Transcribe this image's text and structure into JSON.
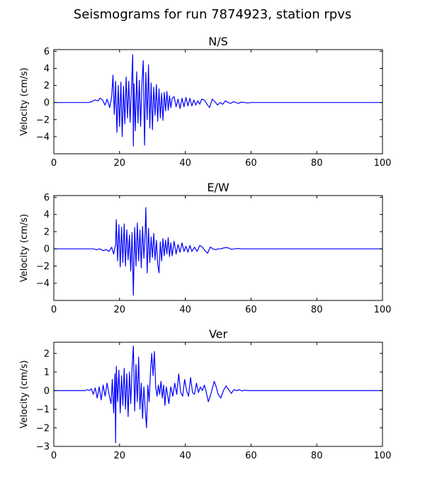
{
  "figure": {
    "title": "Seismograms for run 7874923, station rpvs"
  },
  "colors": {
    "trace": "#0000ff",
    "axes": "#000000",
    "background": "#ffffff"
  },
  "chart_data": [
    {
      "type": "line",
      "title": "N/S",
      "xlabel": "",
      "ylabel": "Velocity (cm/s)",
      "xlim": [
        0,
        100
      ],
      "ylim": [
        -6,
        6.2
      ],
      "xticks": [
        0,
        20,
        40,
        60,
        80,
        100
      ],
      "yticks": [
        -4,
        -2,
        0,
        2,
        4,
        6
      ],
      "grid": false,
      "series": [
        {
          "x": [
            0,
            10.5,
            11.5,
            12.5,
            13.5,
            14.0,
            14.8,
            15.6,
            16.2,
            17.0,
            17.6,
            18.0,
            18.4,
            18.8,
            19.2,
            19.6,
            20.0,
            20.4,
            20.8,
            21.2,
            21.6,
            22.0,
            22.4,
            22.8,
            23.2,
            23.6,
            24.0,
            24.2,
            24.4,
            24.8,
            25.2,
            25.6,
            26.0,
            26.4,
            26.8,
            27.2,
            27.6,
            28.0,
            28.4,
            28.8,
            29.2,
            29.6,
            30.0,
            30.4,
            30.8,
            31.2,
            31.6,
            32.0,
            32.4,
            32.8,
            33.2,
            33.6,
            34.0,
            34.4,
            34.8,
            35.2,
            35.6,
            36.0,
            36.6,
            37.2,
            37.8,
            38.4,
            39.0,
            39.6,
            40.2,
            40.8,
            41.4,
            42.0,
            42.6,
            43.2,
            43.8,
            44.4,
            45.0,
            45.8,
            46.6,
            47.4,
            48.2,
            49.0,
            49.8,
            50.6,
            51.4,
            52.2,
            53.0,
            53.8,
            54.6,
            55.4,
            56.2,
            57.0,
            58.0,
            59.0,
            60.0,
            62.0,
            100
          ],
          "y": [
            0,
            0,
            0.1,
            0.3,
            0.2,
            0.5,
            0.3,
            -0.3,
            0.4,
            -0.6,
            0.7,
            3.2,
            -1.4,
            2.5,
            -3.5,
            2.0,
            -2.8,
            2.4,
            -4.0,
            1.9,
            -2.5,
            3.0,
            -1.8,
            2.5,
            -2.3,
            1.6,
            5.6,
            -5.1,
            2.2,
            -3.3,
            3.6,
            -2.4,
            2.6,
            -2.8,
            2.2,
            4.9,
            -5.0,
            3.5,
            -2.0,
            4.4,
            -3.0,
            2.3,
            -3.2,
            1.8,
            -1.5,
            2.1,
            -2.2,
            1.6,
            -1.8,
            1.1,
            -2.1,
            1.2,
            -1.0,
            1.3,
            -0.9,
            0.8,
            -0.6,
            0.5,
            0.7,
            -0.5,
            0.4,
            -0.7,
            0.5,
            -0.5,
            0.6,
            -0.4,
            0.5,
            -0.4,
            0.3,
            -0.3,
            0.2,
            -0.2,
            0.4,
            0.3,
            -0.2,
            -0.6,
            0.4,
            0.1,
            -0.3,
            0.0,
            -0.2,
            0.2,
            0.0,
            -0.1,
            0.1,
            0.0,
            -0.1,
            0.05,
            0.0,
            -0.05,
            0.0,
            0.0,
            0
          ]
        }
      ]
    },
    {
      "type": "line",
      "title": "E/W",
      "xlabel": "",
      "ylabel": "Velocity (cm/s)",
      "xlim": [
        0,
        100
      ],
      "ylim": [
        -6,
        6.2
      ],
      "xticks": [
        0,
        20,
        40,
        60,
        80,
        100
      ],
      "yticks": [
        -4,
        -2,
        0,
        2,
        4,
        6
      ],
      "grid": false,
      "series": [
        {
          "x": [
            0,
            11.0,
            12.0,
            13.0,
            14.0,
            15.0,
            16.0,
            16.8,
            17.6,
            18.2,
            18.8,
            19.0,
            19.4,
            19.8,
            20.2,
            20.6,
            21.0,
            21.4,
            21.8,
            22.2,
            22.6,
            23.0,
            23.4,
            23.8,
            24.2,
            24.6,
            25.0,
            25.4,
            25.8,
            26.2,
            26.6,
            27.0,
            27.4,
            27.8,
            28.0,
            28.4,
            28.8,
            29.2,
            29.6,
            30.0,
            30.4,
            30.8,
            31.2,
            31.6,
            32.0,
            32.4,
            32.8,
            33.2,
            33.6,
            34.0,
            34.4,
            34.8,
            35.2,
            35.6,
            36.0,
            36.6,
            37.2,
            37.8,
            38.4,
            39.0,
            39.6,
            40.2,
            40.8,
            41.4,
            42.0,
            42.8,
            43.6,
            44.4,
            45.2,
            46.0,
            46.8,
            47.6,
            48.4,
            49.2,
            50.0,
            50.8,
            51.6,
            52.4,
            53.2,
            54.0,
            55.0,
            56.0,
            57.0,
            58.0,
            60.0,
            62.0,
            100
          ],
          "y": [
            0,
            0,
            0.0,
            -0.1,
            0.0,
            -0.2,
            -0.1,
            -0.3,
            0.2,
            -0.6,
            0.5,
            3.4,
            -1.4,
            2.8,
            -2.1,
            2.5,
            -1.6,
            2.9,
            -2.0,
            2.2,
            -1.3,
            1.6,
            -2.6,
            1.9,
            -5.4,
            2.5,
            -2.0,
            3.0,
            -1.4,
            2.2,
            -2.2,
            2.6,
            -1.1,
            2.0,
            4.8,
            -2.8,
            2.4,
            -1.6,
            1.4,
            -1.0,
            1.8,
            -1.3,
            1.0,
            -1.8,
            -2.8,
            0.8,
            -1.4,
            1.2,
            -0.8,
            1.0,
            -0.6,
            1.3,
            -0.9,
            0.7,
            -0.8,
            0.9,
            -0.6,
            0.5,
            -0.4,
            0.7,
            -0.3,
            0.3,
            -0.4,
            0.4,
            -0.3,
            0.2,
            -0.3,
            0.4,
            0.2,
            -0.2,
            -0.5,
            0.2,
            0.0,
            -0.1,
            0.0,
            0.0,
            0.1,
            0.15,
            0.1,
            -0.05,
            0.0,
            0.05,
            0.0,
            0.0,
            0.0,
            0.0,
            0
          ]
        }
      ]
    },
    {
      "type": "line",
      "title": "Ver",
      "xlabel": "",
      "ylabel": "Velocity (cm/s)",
      "xlim": [
        0,
        100
      ],
      "ylim": [
        -3,
        2.6
      ],
      "xticks": [
        0,
        20,
        40,
        60,
        80,
        100
      ],
      "yticks": [
        -3,
        -2,
        -1,
        0,
        1,
        2
      ],
      "grid": false,
      "series": [
        {
          "x": [
            0,
            9.5,
            10.2,
            10.8,
            11.4,
            12.0,
            12.6,
            13.2,
            13.8,
            14.4,
            15.0,
            15.6,
            16.2,
            16.8,
            17.4,
            17.8,
            18.2,
            18.6,
            18.8,
            19.0,
            19.4,
            19.8,
            20.2,
            20.6,
            21.0,
            21.4,
            21.8,
            22.2,
            22.6,
            23.0,
            23.4,
            23.8,
            24.2,
            24.6,
            25.0,
            25.4,
            25.8,
            26.2,
            26.6,
            27.0,
            27.4,
            27.8,
            28.2,
            28.6,
            29.0,
            29.4,
            29.8,
            30.2,
            30.6,
            31.0,
            31.4,
            31.8,
            32.2,
            32.6,
            33.0,
            33.4,
            33.8,
            34.2,
            34.6,
            35.0,
            35.6,
            36.2,
            36.8,
            37.4,
            38.0,
            38.6,
            39.2,
            39.8,
            40.4,
            41.0,
            41.6,
            42.2,
            42.8,
            43.4,
            44.0,
            44.6,
            45.2,
            45.8,
            46.4,
            47.0,
            47.6,
            48.2,
            48.8,
            49.4,
            50.0,
            50.8,
            51.6,
            52.4,
            53.2,
            54.0,
            54.8,
            55.6,
            56.4,
            57.2,
            58.0,
            59.0,
            60.0,
            62.0,
            100
          ],
          "y": [
            0,
            0,
            0.05,
            0.0,
            0.1,
            -0.2,
            0.15,
            -0.4,
            0.2,
            -0.5,
            0.3,
            -0.3,
            0.4,
            -0.2,
            -0.7,
            0.6,
            -1.2,
            0.9,
            -2.8,
            1.3,
            -0.6,
            1.1,
            -1.2,
            0.8,
            -0.8,
            1.2,
            -1.0,
            0.9,
            -1.4,
            1.0,
            -0.7,
            1.2,
            2.4,
            -1.1,
            1.4,
            -0.6,
            1.8,
            -1.0,
            0.4,
            -1.5,
            0.2,
            -1.0,
            -2.0,
            0.3,
            -0.6,
            1.0,
            2.0,
            0.8,
            2.1,
            0.2,
            -0.3,
            0.3,
            -0.2,
            0.5,
            -0.4,
            0.3,
            -0.8,
            0.2,
            -0.2,
            -0.7,
            0.2,
            -0.3,
            0.4,
            -0.2,
            0.9,
            -0.1,
            -0.3,
            0.6,
            0.0,
            -0.3,
            0.7,
            -0.1,
            -0.2,
            0.4,
            -0.1,
            0.2,
            0.0,
            0.3,
            -0.1,
            -0.6,
            -0.3,
            0.1,
            0.5,
            0.2,
            -0.2,
            -0.4,
            0.0,
            0.25,
            0.05,
            -0.15,
            0.05,
            0.0,
            0.05,
            -0.02,
            0.02,
            0.0,
            0.0,
            0.0,
            0
          ]
        }
      ]
    }
  ]
}
